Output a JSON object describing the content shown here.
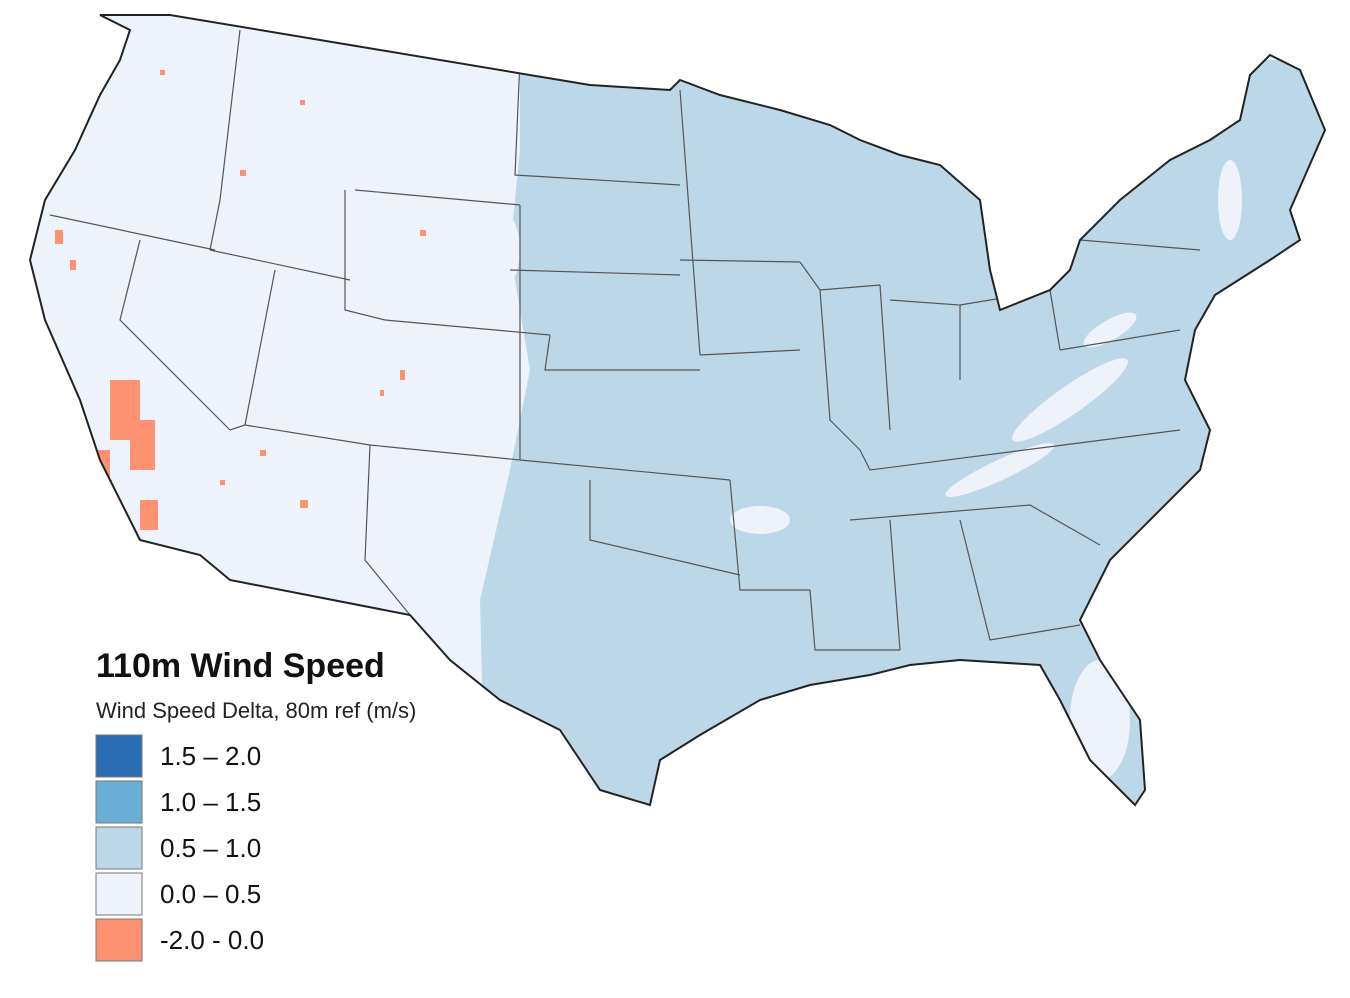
{
  "legend": {
    "title": "110m Wind Speed",
    "subtitle": "Wind Speed Delta, 80m ref (m/s)",
    "items": [
      {
        "label": "1.5 – 2.0",
        "color": "#2a6db5"
      },
      {
        "label": "1.0 – 1.5",
        "color": "#6aaed6"
      },
      {
        "label": "0.5 – 1.0",
        "color": "#bcd8e8"
      },
      {
        "label": "0.0 – 0.5",
        "color": "#eef2fb"
      },
      {
        "label": "-2.0 - 0.0",
        "color": "#fc9272"
      }
    ]
  }
}
